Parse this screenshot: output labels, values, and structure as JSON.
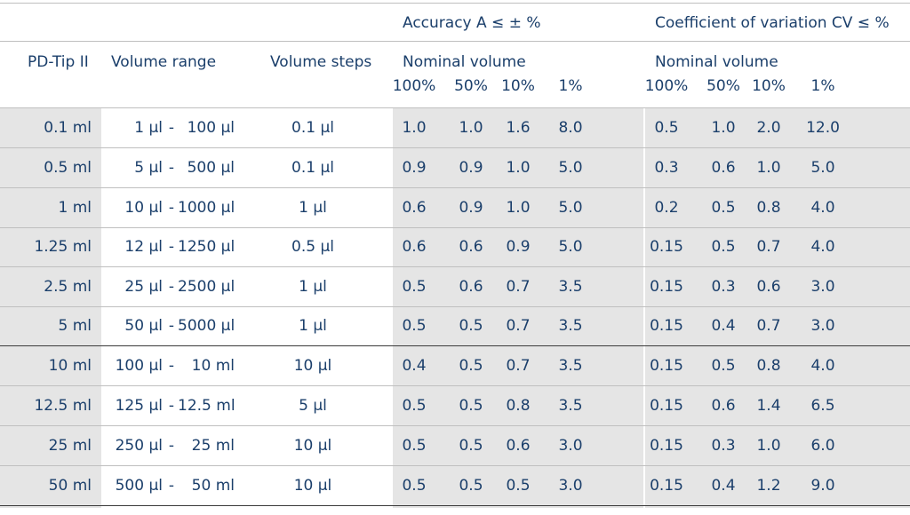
{
  "header": {
    "group_accuracy": "Accuracy A ≤ ± %",
    "group_cv": "Coefficient of variation CV ≤ %",
    "col_tip": "PD-Tip II",
    "col_range": "Volume range",
    "col_steps": "Volume steps",
    "nominal_accuracy": "Nominal volume",
    "nominal_cv": "Nominal volume",
    "pct_accuracy": [
      "100%",
      "50%",
      "10%",
      "1%"
    ],
    "pct_cv": [
      "100%",
      "50%",
      "10%",
      "1%"
    ]
  },
  "rows": [
    {
      "tip": "0.1 ml",
      "range_from": "1 µl",
      "range_sep": "-",
      "range_to": "100 µl",
      "steps": "0.1 µl",
      "accuracy": [
        "1.0",
        "1.0",
        "1.6",
        "8.0"
      ],
      "cv": [
        "0.5",
        "1.0",
        "2.0",
        "12.0"
      ]
    },
    {
      "tip": "0.5 ml",
      "range_from": "5 µl",
      "range_sep": "-",
      "range_to": "500 µl",
      "steps": "0.1 µl",
      "accuracy": [
        "0.9",
        "0.9",
        "1.0",
        "5.0"
      ],
      "cv": [
        "0.3",
        "0.6",
        "1.0",
        "5.0"
      ]
    },
    {
      "tip": "1 ml",
      "range_from": "10 µl",
      "range_sep": "-",
      "range_to": "1000 µl",
      "steps": "1 µl",
      "accuracy": [
        "0.6",
        "0.9",
        "1.0",
        "5.0"
      ],
      "cv": [
        "0.2",
        "0.5",
        "0.8",
        "4.0"
      ]
    },
    {
      "tip": "1.25 ml",
      "range_from": "12 µl",
      "range_sep": "-",
      "range_to": "1250 µl",
      "steps": "0.5 µl",
      "accuracy": [
        "0.6",
        "0.6",
        "0.9",
        "5.0"
      ],
      "cv": [
        "0.15",
        "0.5",
        "0.7",
        "4.0"
      ]
    },
    {
      "tip": "2.5 ml",
      "range_from": "25 µl",
      "range_sep": "-",
      "range_to": "2500 µl",
      "steps": "1 µl",
      "accuracy": [
        "0.5",
        "0.6",
        "0.7",
        "3.5"
      ],
      "cv": [
        "0.15",
        "0.3",
        "0.6",
        "3.0"
      ]
    },
    {
      "tip": "5 ml",
      "range_from": "50 µl",
      "range_sep": "-",
      "range_to": "5000 µl",
      "steps": "1 µl",
      "accuracy": [
        "0.5",
        "0.5",
        "0.7",
        "3.5"
      ],
      "cv": [
        "0.15",
        "0.4",
        "0.7",
        "3.0"
      ]
    },
    {
      "tip": "10 ml",
      "range_from": "100 µl",
      "range_sep": "-",
      "range_to": "10 ml",
      "steps": "10 µl",
      "accuracy": [
        "0.4",
        "0.5",
        "0.7",
        "3.5"
      ],
      "cv": [
        "0.15",
        "0.5",
        "0.8",
        "4.0"
      ]
    },
    {
      "tip": "12.5 ml",
      "range_from": "125 µl",
      "range_sep": "-",
      "range_to": "12.5 ml",
      "steps": "5 µl",
      "accuracy": [
        "0.5",
        "0.5",
        "0.8",
        "3.5"
      ],
      "cv": [
        "0.15",
        "0.6",
        "1.4",
        "6.5"
      ]
    },
    {
      "tip": "25 ml",
      "range_from": "250 µl",
      "range_sep": "-",
      "range_to": "25 ml",
      "steps": "10 µl",
      "accuracy": [
        "0.5",
        "0.5",
        "0.6",
        "3.0"
      ],
      "cv": [
        "0.15",
        "0.3",
        "1.0",
        "6.0"
      ]
    },
    {
      "tip": "50 ml",
      "range_from": "500 µl",
      "range_sep": "-",
      "range_to": "50 ml",
      "steps": "10 µl",
      "accuracy": [
        "0.5",
        "0.5",
        "0.5",
        "3.0"
      ],
      "cv": [
        "0.15",
        "0.4",
        "1.2",
        "9.0"
      ]
    }
  ],
  "colors": {
    "text": "#1b3f6b",
    "band": "#e5e5e5",
    "rule": "#bfbfbf",
    "rule_dark": "#3a3a3a"
  }
}
